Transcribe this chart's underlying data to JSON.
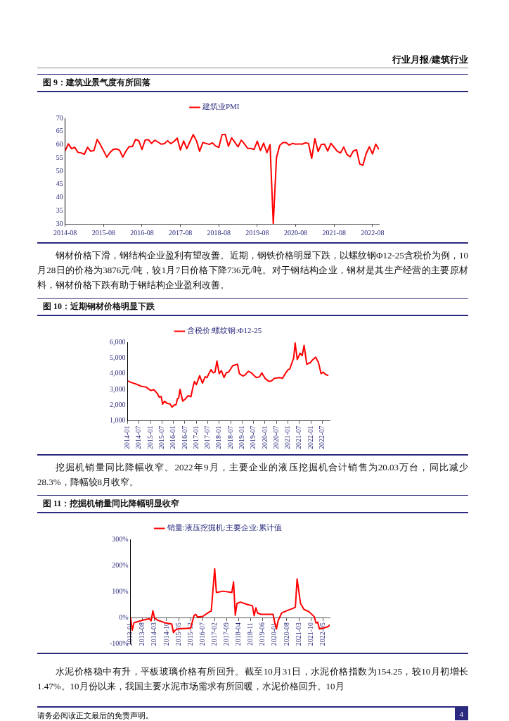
{
  "chart_data": [
    {
      "type": "line",
      "title": "图 9：建筑业景气度有所回落",
      "annotations": [
        "行业月报/建筑行业"
      ],
      "legend": "top",
      "grid": false,
      "marker": "none",
      "xlim": [
        "2014-08",
        "2022-10"
      ],
      "xticks": [
        "2014-08",
        "2015-08",
        "2016-08",
        "2017-08",
        "2018-08",
        "2019-08",
        "2020-08",
        "2021-08",
        "2022-08"
      ],
      "ylim": [
        30,
        70
      ],
      "yticks": [
        30,
        35,
        40,
        45,
        50,
        55,
        60,
        65,
        70
      ],
      "series": [
        {
          "name": "建筑业PMI",
          "color": "#ff0000",
          "x": [
            "2014-08",
            "2014-09",
            "2014-10",
            "2014-11",
            "2014-12",
            "2015-01",
            "2015-02",
            "2015-03",
            "2015-04",
            "2015-05",
            "2015-06",
            "2015-07",
            "2015-08",
            "2015-09",
            "2015-10",
            "2015-11",
            "2015-12",
            "2016-01",
            "2016-02",
            "2016-03",
            "2016-04",
            "2016-05",
            "2016-06",
            "2016-07",
            "2016-08",
            "2016-09",
            "2016-10",
            "2016-11",
            "2016-12",
            "2017-01",
            "2017-02",
            "2017-03",
            "2017-04",
            "2017-05",
            "2017-06",
            "2017-07",
            "2017-08",
            "2017-09",
            "2017-10",
            "2017-11",
            "2017-12",
            "2018-01",
            "2018-02",
            "2018-03",
            "2018-04",
            "2018-05",
            "2018-06",
            "2018-07",
            "2018-08",
            "2018-09",
            "2018-10",
            "2018-11",
            "2018-12",
            "2019-01",
            "2019-02",
            "2019-03",
            "2019-04",
            "2019-05",
            "2019-06",
            "2019-07",
            "2019-08",
            "2019-09",
            "2019-10",
            "2019-11",
            "2019-12",
            "2020-01",
            "2020-02",
            "2020-03",
            "2020-04",
            "2020-05",
            "2020-06",
            "2020-07",
            "2020-08",
            "2020-09",
            "2020-10",
            "2020-11",
            "2020-12",
            "2021-01",
            "2021-02",
            "2021-03",
            "2021-04",
            "2021-05",
            "2021-06",
            "2021-07",
            "2021-08",
            "2021-09",
            "2021-10",
            "2021-11",
            "2021-12",
            "2022-01",
            "2022-02",
            "2022-03",
            "2022-04",
            "2022-05",
            "2022-06",
            "2022-07",
            "2022-08",
            "2022-09",
            "2022-10"
          ],
          "values": [
            57.7,
            60.3,
            58.5,
            59.0,
            57.1,
            56.9,
            56.4,
            59.0,
            57.5,
            57.8,
            62.0,
            60.0,
            57.7,
            55.3,
            57.0,
            58.2,
            58.4,
            57.9,
            55.3,
            57.6,
            59.3,
            59.3,
            62.0,
            61.5,
            58.2,
            61.8,
            61.9,
            60.5,
            61.7,
            61.0,
            60.2,
            60.4,
            61.5,
            60.4,
            61.2,
            62.5,
            58.0,
            61.4,
            58.5,
            61.2,
            63.8,
            61.5,
            57.5,
            60.8,
            60.5,
            60.1,
            60.7,
            59.5,
            59.0,
            63.8,
            63.9,
            59.4,
            62.6,
            60.9,
            59.2,
            61.7,
            60.3,
            58.6,
            58.6,
            58.2,
            61.3,
            57.8,
            60.6,
            57.0,
            60.0,
            30,
            55.1,
            59.7,
            60.8,
            60.8,
            59.8,
            60.5,
            60.2,
            60.3,
            60.2,
            60.7,
            60.5,
            54.8,
            62.3,
            57.4,
            60.1,
            60.2,
            57.6,
            60.5,
            59.0,
            57.5,
            56.9,
            59.1,
            56.3,
            55.4,
            57.6,
            58.1,
            52.7,
            52.2,
            56.6,
            59.2,
            56.5,
            60.2,
            58.2
          ]
        }
      ]
    },
    {
      "type": "line",
      "title": "图 10：近期钢材价格明显下跌",
      "annotations": [
        "钢材价格下滑，钢结构企业盈利有望改善。近期，钢铁价格明显下跌，以螺纹钢Φ12-25含税价为例，10月28日的价格为3876元/吨，较1月7日价格下降736元/吨。对于钢结构企业，钢材是其生产经营的主要原材料，钢材价格下跌有助于钢结构企业盈利改善。"
      ],
      "legend": "top",
      "grid": false,
      "marker": "none",
      "xlim": [
        "2014-01-01",
        "2022-10-28"
      ],
      "xticks": [
        "2014-01",
        "2014-07",
        "2015-01",
        "2015-07",
        "2016-01",
        "2016-07",
        "2017-01",
        "2017-07",
        "2018-01",
        "2018-07",
        "2019-01",
        "2019-07",
        "2020-01",
        "2020-07",
        "2021-01",
        "2021-07",
        "2022-01",
        "2022-07"
      ],
      "ylim": [
        1000,
        6000
      ],
      "yticks": [
        {
          "value": 1000,
          "label": "1,000"
        },
        {
          "value": 2000,
          "label": "2,000"
        },
        {
          "value": 3000,
          "label": "3,000"
        },
        {
          "value": 4000,
          "label": "4,000"
        },
        {
          "value": 5000,
          "label": "5,000"
        },
        {
          "value": 6000,
          "label": "6,000"
        }
      ],
      "series": [
        {
          "name": "含税价:螺纹钢:Φ12-25",
          "color": "#ff0000",
          "x": [
            "2014-01-01",
            "2014-03-04",
            "2014-05-07",
            "2014-08-02",
            "2014-10-25",
            "2015-01-01",
            "2015-02-24",
            "2015-04-16",
            "2015-05-19",
            "2015-06-19",
            "2015-07-11",
            "2015-08-10",
            "2015-09-26",
            "2015-11-09",
            "2015-12-09",
            "2016-01-13",
            "2016-02-12",
            "2016-03-04",
            "2016-03-24",
            "2016-04-16",
            "2016-05-27",
            "2016-07-11",
            "2016-08-22",
            "2016-10-06",
            "2016-11-06",
            "2016-12-01",
            "2017-01-01",
            "2017-02-24",
            "2017-04-08",
            "2017-05-20",
            "2017-06-19",
            "2017-07-19",
            "2017-08-23",
            "2017-09-26",
            "2017-10-26",
            "2017-11-25",
            "2018-01-01",
            "2018-02-05",
            "2018-03-16",
            "2018-04-20",
            "2018-05-28",
            "2018-08-03",
            "2018-10-18",
            "2018-11-18",
            "2019-01-13",
            "2019-02-13",
            "2019-04-08",
            "2019-05-28",
            "2019-07-03",
            "2019-08-15",
            "2019-10-06",
            "2019-11-10",
            "2020-01-01",
            "2020-03-05",
            "2020-04-16",
            "2020-05-28",
            "2020-08-23",
            "2020-10-06",
            "2020-11-18",
            "2021-01-02",
            "2021-02-01",
            "2021-03-05",
            "2021-04-01",
            "2021-04-24",
            "2021-05-28",
            "2021-07-12",
            "2021-08-15",
            "2021-09-15",
            "2021-10-27",
            "2021-12-22",
            "2022-01-22",
            "2022-03-17",
            "2022-05-01",
            "2022-06-12",
            "2022-07-12",
            "2022-08-23",
            "2022-10-07"
          ],
          "values": [
            3540,
            3430,
            3350,
            3200,
            3140,
            2930,
            2980,
            2750,
            2500,
            2550,
            2060,
            2250,
            2100,
            2070,
            1870,
            2000,
            2030,
            2400,
            2450,
            3000,
            2250,
            2400,
            2600,
            2530,
            3100,
            3500,
            3300,
            3870,
            3400,
            3800,
            3750,
            4000,
            4250,
            4050,
            4100,
            4800,
            4000,
            4200,
            3750,
            4050,
            4100,
            4500,
            4600,
            4000,
            3850,
            3900,
            4150,
            4050,
            3900,
            3750,
            3800,
            4050,
            3700,
            3500,
            3550,
            3700,
            3750,
            3700,
            4000,
            4250,
            4300,
            4700,
            5000,
            5950,
            4900,
            5300,
            5150,
            5800,
            4600,
            4700,
            4850,
            5050,
            4700,
            4000,
            4100,
            3950,
            3876
          ]
        }
      ]
    },
    {
      "type": "line",
      "title": "图 11：挖掘机销量同比降幅明显收窄",
      "annotations": [
        "挖掘机销量同比降幅收窄。2022年9月，主要企业的液压挖掘机合计销售为20.03万台，同比减少28.3%，降幅较8月收窄。",
        "水泥价格稳中有升，平板玻璃价格有所回升。截至10月31日，水泥价格指数为154.25，较10月初增长1.47%。10月份以来，我国主要水泥市场需求有所回暖，水泥价格回升。10月",
        "请务必阅读正文最后的免责声明。",
        "4"
      ],
      "legend": "top",
      "grid": false,
      "marker": "none",
      "xlim": [
        "2013-01",
        "2022-09"
      ],
      "xticks": [
        "2013-01",
        "2013-08",
        "2014-03",
        "2014-10",
        "2015-05",
        "2015-12",
        "2016-07",
        "2017-02",
        "2017-09",
        "2018-04",
        "2018-11",
        "2019-06",
        "2020-01",
        "2020-08",
        "2021-03",
        "2021-10",
        "2022-05"
      ],
      "ylim": [
        -100,
        300
      ],
      "yticks": [
        {
          "value": -100,
          "label": "-100%"
        },
        {
          "value": 0,
          "label": "0%"
        },
        {
          "value": 100,
          "label": "100%"
        },
        {
          "value": 200,
          "label": "200%"
        },
        {
          "value": 300,
          "label": "300%"
        }
      ],
      "series": [
        {
          "name": "销量:液压挖掘机:主要企业:累计值",
          "color": "#ff0000",
          "x": [
            "2013-01",
            "2013-02",
            "2013-03",
            "2013-05",
            "2013-09",
            "2013-12",
            "2014-01",
            "2014-02",
            "2014-03",
            "2014-05",
            "2014-09",
            "2015-01",
            "2015-02",
            "2015-03",
            "2015-05",
            "2015-12",
            "2016-02",
            "2016-03",
            "2016-04",
            "2016-07",
            "2016-11",
            "2016-12",
            "2017-02",
            "2017-03",
            "2017-07",
            "2017-12",
            "2018-01",
            "2018-02",
            "2018-03",
            "2018-05",
            "2018-09",
            "2018-12",
            "2019-01",
            "2019-02",
            "2019-03",
            "2019-05",
            "2019-12",
            "2020-01",
            "2020-02",
            "2020-03",
            "2020-05",
            "2020-08",
            "2020-12",
            "2021-01",
            "2021-02",
            "2021-04",
            "2021-06",
            "2021-09",
            "2021-12",
            "2022-01",
            "2022-02",
            "2022-03",
            "2022-06",
            "2022-08",
            "2022-09"
          ],
          "values": [
            0,
            -49,
            -20,
            -16,
            -9,
            -5,
            -13,
            26,
            -2,
            -11,
            -20,
            -25,
            -58,
            -49,
            -43,
            -41,
            8,
            12,
            2,
            4,
            22,
            24,
            187,
            96,
            101,
            96,
            137,
            9,
            54,
            59,
            50,
            45,
            7,
            37,
            17,
            12,
            12,
            -21,
            -44,
            -11,
            17,
            26,
            36,
            40,
            148,
            54,
            31,
            22,
            3,
            -21,
            -18,
            -44,
            -39,
            -35,
            -28
          ]
        }
      ]
    }
  ]
}
